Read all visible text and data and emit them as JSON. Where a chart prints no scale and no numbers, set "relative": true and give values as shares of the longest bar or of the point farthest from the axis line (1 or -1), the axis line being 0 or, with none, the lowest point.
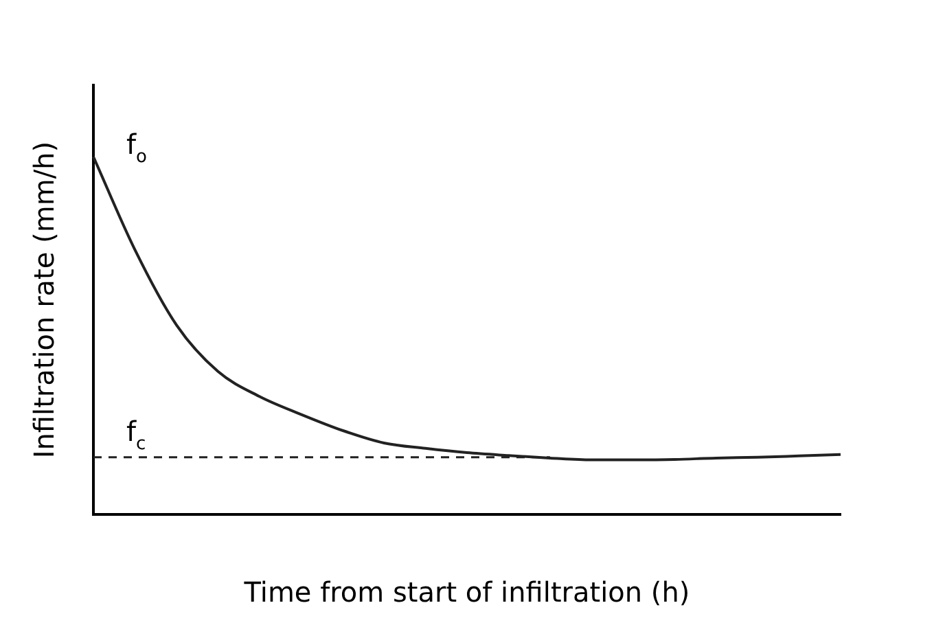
{
  "chart_data": {
    "type": "line",
    "relative": true,
    "xlabel": "Time from start of infiltration (h)",
    "ylabel": "Infiltration rate (mm/h)",
    "categories": [
      null,
      null,
      null,
      null,
      null,
      null,
      null,
      null,
      null,
      null,
      null,
      null,
      null,
      null,
      null,
      null,
      null,
      null,
      null
    ],
    "series": [
      {
        "color": "#222222",
        "values": [
          1,
          0.74,
          0.53,
          0.4,
          0.33,
          0.28,
          0.235,
          0.2,
          0.185,
          0.173,
          0.165,
          0.158,
          0.153,
          0.153,
          0.154,
          0.158,
          0.16,
          0.164,
          0.168
        ]
      }
    ],
    "ref_lines": [
      {
        "axis": "y",
        "value": 0.16,
        "line_style": "dashed",
        "color": "#222222",
        "label": "f$_{c}$"
      }
    ],
    "annotations": [
      "f$_{o}$"
    ],
    "grid": false,
    "legend": false,
    "marker": "none",
    "line_style": "solid"
  }
}
